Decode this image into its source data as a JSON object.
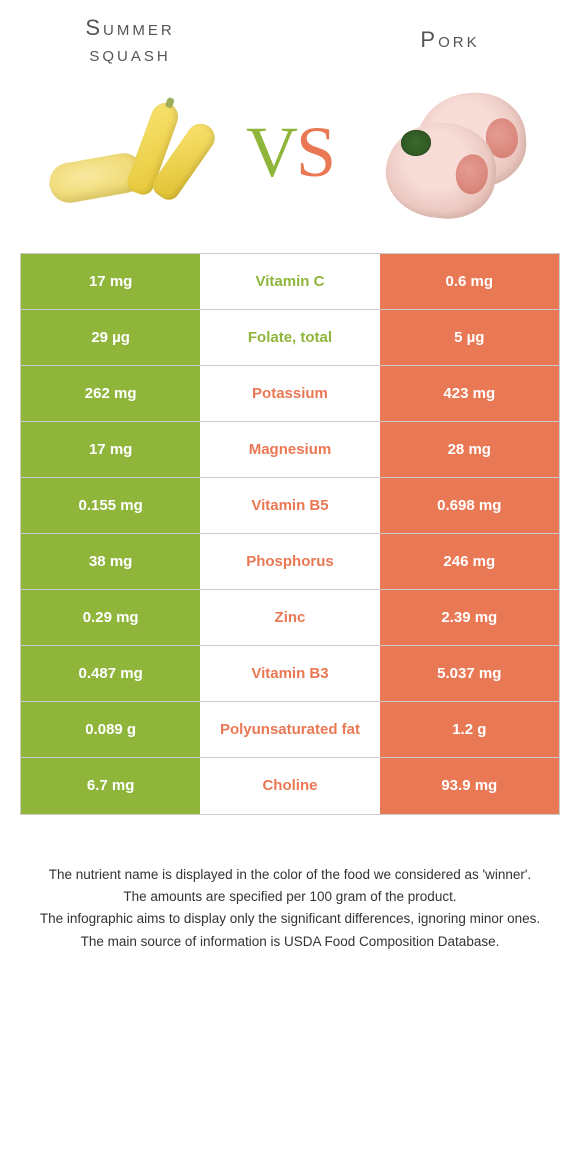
{
  "header": {
    "left_title": "Summer\nsquash",
    "right_title": "Pork"
  },
  "vs": {
    "v": "V",
    "s": "S"
  },
  "colors": {
    "green": "#8fb53a",
    "orange": "#e97854",
    "row_border": "#cccccc",
    "text_dark": "#333333",
    "white": "#ffffff"
  },
  "table": {
    "type": "comparison-table",
    "rows": [
      {
        "left": "17 mg",
        "label": "Vitamin C",
        "right": "0.6 mg",
        "winner": "left"
      },
      {
        "left": "29 µg",
        "label": "Folate, total",
        "right": "5 µg",
        "winner": "left"
      },
      {
        "left": "262 mg",
        "label": "Potassium",
        "right": "423 mg",
        "winner": "right"
      },
      {
        "left": "17 mg",
        "label": "Magnesium",
        "right": "28 mg",
        "winner": "right"
      },
      {
        "left": "0.155 mg",
        "label": "Vitamin B5",
        "right": "0.698 mg",
        "winner": "right"
      },
      {
        "left": "38 mg",
        "label": "Phosphorus",
        "right": "246 mg",
        "winner": "right"
      },
      {
        "left": "0.29 mg",
        "label": "Zinc",
        "right": "2.39 mg",
        "winner": "right"
      },
      {
        "left": "0.487 mg",
        "label": "Vitamin B3",
        "right": "5.037 mg",
        "winner": "right"
      },
      {
        "left": "0.089 g",
        "label": "Polyunsaturated fat",
        "right": "1.2 g",
        "winner": "right"
      },
      {
        "left": "6.7 mg",
        "label": "Choline",
        "right": "93.9 mg",
        "winner": "right"
      }
    ]
  },
  "footer": {
    "line1": "The nutrient name is displayed in the color of the food we considered as 'winner'.",
    "line2": "The amounts are specified per 100 gram of the product.",
    "line3": "The infographic aims to display only the significant differences, ignoring minor ones.",
    "line4": "The main source of information is USDA Food Composition Database."
  }
}
